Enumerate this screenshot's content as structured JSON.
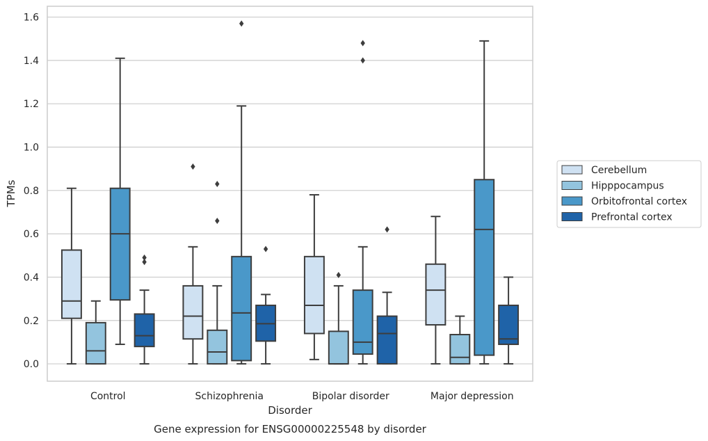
{
  "chart_data": {
    "type": "box",
    "title": "",
    "caption": "Gene expression for ENSG00000225548 by disorder",
    "xlabel": "Disorder",
    "ylabel": "TPMs",
    "ylim": [
      -0.08,
      1.65
    ],
    "yticks": [
      "0.0",
      "0.2",
      "0.4",
      "0.6",
      "0.8",
      "1.0",
      "1.2",
      "1.4",
      "1.6"
    ],
    "categories": [
      "Control",
      "Schizophrenia",
      "Bipolar disorder",
      "Major depression"
    ],
    "grid": "horizontal",
    "legend_position": "right",
    "series": [
      {
        "name": "Cerebellum",
        "color": "#cfe1f2",
        "boxes": [
          {
            "whisker_low": 0.0,
            "q1": 0.21,
            "median": 0.29,
            "q3": 0.525,
            "whisker_high": 0.81,
            "outliers": []
          },
          {
            "whisker_low": 0.0,
            "q1": 0.115,
            "median": 0.22,
            "q3": 0.36,
            "whisker_high": 0.54,
            "outliers": [
              0.91
            ]
          },
          {
            "whisker_low": 0.02,
            "q1": 0.14,
            "median": 0.27,
            "q3": 0.495,
            "whisker_high": 0.78,
            "outliers": []
          },
          {
            "whisker_low": 0.0,
            "q1": 0.18,
            "median": 0.34,
            "q3": 0.46,
            "whisker_high": 0.68,
            "outliers": []
          }
        ]
      },
      {
        "name": "Hipppocampus",
        "color": "#93c4de",
        "boxes": [
          {
            "whisker_low": 0.0,
            "q1": 0.0,
            "median": 0.06,
            "q3": 0.19,
            "whisker_high": 0.29,
            "outliers": []
          },
          {
            "whisker_low": 0.0,
            "q1": 0.0,
            "median": 0.055,
            "q3": 0.155,
            "whisker_high": 0.36,
            "outliers": [
              0.66,
              0.83
            ]
          },
          {
            "whisker_low": 0.0,
            "q1": 0.0,
            "median": 0.0,
            "q3": 0.15,
            "whisker_high": 0.36,
            "outliers": [
              0.41
            ]
          },
          {
            "whisker_low": 0.0,
            "q1": 0.0,
            "median": 0.03,
            "q3": 0.135,
            "whisker_high": 0.22,
            "outliers": []
          }
        ]
      },
      {
        "name": "Orbitofrontal cortex",
        "color": "#4a98c9",
        "boxes": [
          {
            "whisker_low": 0.09,
            "q1": 0.295,
            "median": 0.6,
            "q3": 0.81,
            "whisker_high": 1.41,
            "outliers": []
          },
          {
            "whisker_low": 0.0,
            "q1": 0.015,
            "median": 0.235,
            "q3": 0.495,
            "whisker_high": 1.19,
            "outliers": [
              1.57
            ]
          },
          {
            "whisker_low": 0.0,
            "q1": 0.045,
            "median": 0.1,
            "q3": 0.34,
            "whisker_high": 0.54,
            "outliers": [
              1.4,
              1.48
            ]
          },
          {
            "whisker_low": 0.0,
            "q1": 0.04,
            "median": 0.62,
            "q3": 0.85,
            "whisker_high": 1.49,
            "outliers": []
          }
        ]
      },
      {
        "name": "Prefrontal cortex",
        "color": "#1f63a8",
        "boxes": [
          {
            "whisker_low": 0.0,
            "q1": 0.08,
            "median": 0.13,
            "q3": 0.23,
            "whisker_high": 0.34,
            "outliers": [
              0.47,
              0.49
            ]
          },
          {
            "whisker_low": 0.0,
            "q1": 0.105,
            "median": 0.185,
            "q3": 0.27,
            "whisker_high": 0.32,
            "outliers": [
              0.53
            ]
          },
          {
            "whisker_low": 0.0,
            "q1": 0.0,
            "median": 0.14,
            "q3": 0.22,
            "whisker_high": 0.33,
            "outliers": [
              0.62
            ]
          },
          {
            "whisker_low": 0.0,
            "q1": 0.09,
            "median": 0.115,
            "q3": 0.27,
            "whisker_high": 0.4,
            "outliers": []
          }
        ]
      }
    ]
  }
}
